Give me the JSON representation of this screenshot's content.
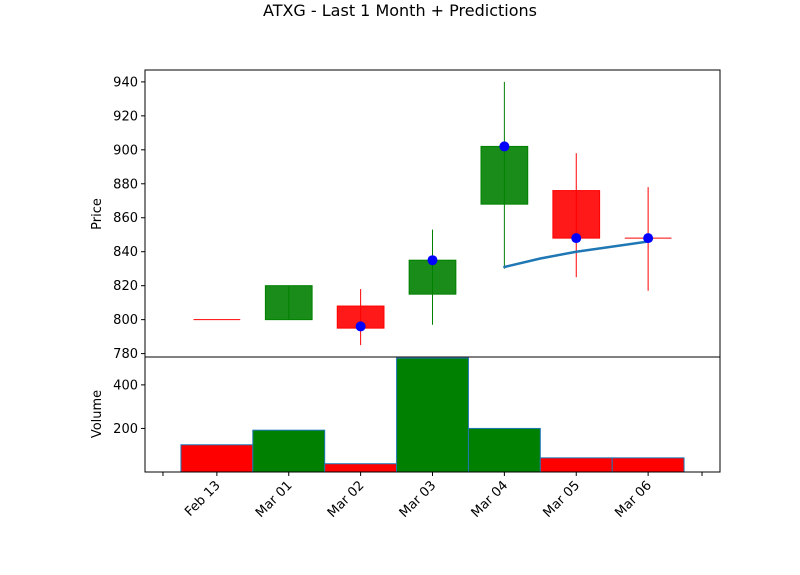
{
  "chart_data": {
    "type": "candlestick",
    "title": "ATXG - Last 1 Month + Predictions",
    "categories": [
      "Feb 13",
      "Mar 01",
      "Mar 02",
      "Mar 03",
      "Mar 04",
      "Mar 05",
      "Mar 06"
    ],
    "price_panel": {
      "ylabel": "Price",
      "ylim": [
        778,
        947
      ],
      "yticks": [
        780,
        800,
        820,
        840,
        860,
        880,
        900,
        920,
        940
      ],
      "candles": [
        {
          "open": 800,
          "high": 800,
          "low": 800,
          "close": 800,
          "color": "#ff0000"
        },
        {
          "open": 800,
          "high": 820,
          "low": 800,
          "close": 820,
          "color": "#008000"
        },
        {
          "open": 808,
          "high": 818,
          "low": 785,
          "close": 795,
          "color": "#ff0000"
        },
        {
          "open": 815,
          "high": 853,
          "low": 797,
          "close": 835,
          "color": "#008000"
        },
        {
          "open": 868,
          "high": 940,
          "low": 830,
          "close": 902,
          "color": "#008000"
        },
        {
          "open": 876,
          "high": 898,
          "low": 825,
          "close": 848,
          "color": "#ff0000"
        },
        {
          "open": 848,
          "high": 878,
          "low": 817,
          "close": 848,
          "color": "#ff0000"
        }
      ],
      "markers": [
        {
          "index": 2,
          "value": 796
        },
        {
          "index": 3,
          "value": 835
        },
        {
          "index": 4,
          "value": 902
        },
        {
          "index": 5,
          "value": 848
        },
        {
          "index": 6,
          "value": 848
        }
      ],
      "marker_color": "#0000ff",
      "prediction_line": {
        "color": "#1f77b4",
        "points": [
          {
            "index": 4,
            "value": 831
          },
          {
            "index": 4.5,
            "value": 836
          },
          {
            "index": 5,
            "value": 840
          },
          {
            "index": 6,
            "value": 846
          }
        ]
      }
    },
    "volume_panel": {
      "ylabel": "Volume",
      "ylim": [
        0,
        528
      ],
      "yticks": [
        200,
        400
      ],
      "values": [
        125,
        192,
        38,
        523,
        200,
        65,
        65
      ],
      "colors": [
        "#ff0000",
        "#008000",
        "#ff0000",
        "#008000",
        "#008000",
        "#ff0000",
        "#ff0000"
      ]
    },
    "x_range": [
      -1,
      7
    ],
    "grid": false,
    "legend": "none"
  }
}
